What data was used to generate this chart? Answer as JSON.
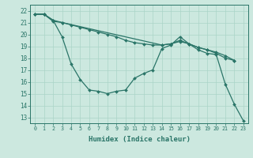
{
  "xlabel": "Humidex (Indice chaleur)",
  "xlim": [
    -0.5,
    23.5
  ],
  "ylim": [
    12.5,
    22.5
  ],
  "yticks": [
    13,
    14,
    15,
    16,
    17,
    18,
    19,
    20,
    21,
    22
  ],
  "xticks": [
    0,
    1,
    2,
    3,
    4,
    5,
    6,
    7,
    8,
    9,
    10,
    11,
    12,
    13,
    14,
    15,
    16,
    17,
    18,
    19,
    20,
    21,
    22,
    23
  ],
  "bg_color": "#cce8df",
  "line_color": "#2a7568",
  "grid_color": "#aad4c8",
  "line1_x": [
    0,
    1,
    2,
    3,
    4,
    5,
    6,
    7,
    8,
    9,
    10,
    11,
    12,
    13,
    14,
    15,
    16,
    17,
    18,
    19,
    20,
    21,
    22,
    23
  ],
  "line1_y": [
    21.7,
    21.7,
    21.2,
    19.8,
    17.5,
    16.2,
    15.3,
    15.2,
    15.0,
    15.2,
    15.3,
    16.3,
    16.7,
    17.0,
    18.8,
    19.1,
    19.8,
    19.2,
    18.7,
    18.4,
    18.3,
    15.8,
    14.1,
    12.7
  ],
  "line2_x": [
    0,
    1,
    2,
    3,
    4,
    5,
    6,
    7,
    8,
    9,
    10,
    11,
    12,
    13,
    14,
    15,
    16,
    17,
    18,
    19,
    20,
    21,
    22
  ],
  "line2_y": [
    21.7,
    21.7,
    21.1,
    21.0,
    20.8,
    20.6,
    20.4,
    20.2,
    20.0,
    19.8,
    19.5,
    19.3,
    19.2,
    19.1,
    19.1,
    19.2,
    19.4,
    19.2,
    18.9,
    18.7,
    18.5,
    18.2,
    17.8
  ],
  "line3_x": [
    0,
    1,
    2,
    3,
    14,
    15,
    16,
    17,
    18,
    19,
    20,
    21,
    22
  ],
  "line3_y": [
    21.7,
    21.7,
    21.2,
    21.0,
    19.1,
    19.2,
    19.5,
    19.2,
    18.9,
    18.7,
    18.4,
    18.0,
    17.8
  ]
}
